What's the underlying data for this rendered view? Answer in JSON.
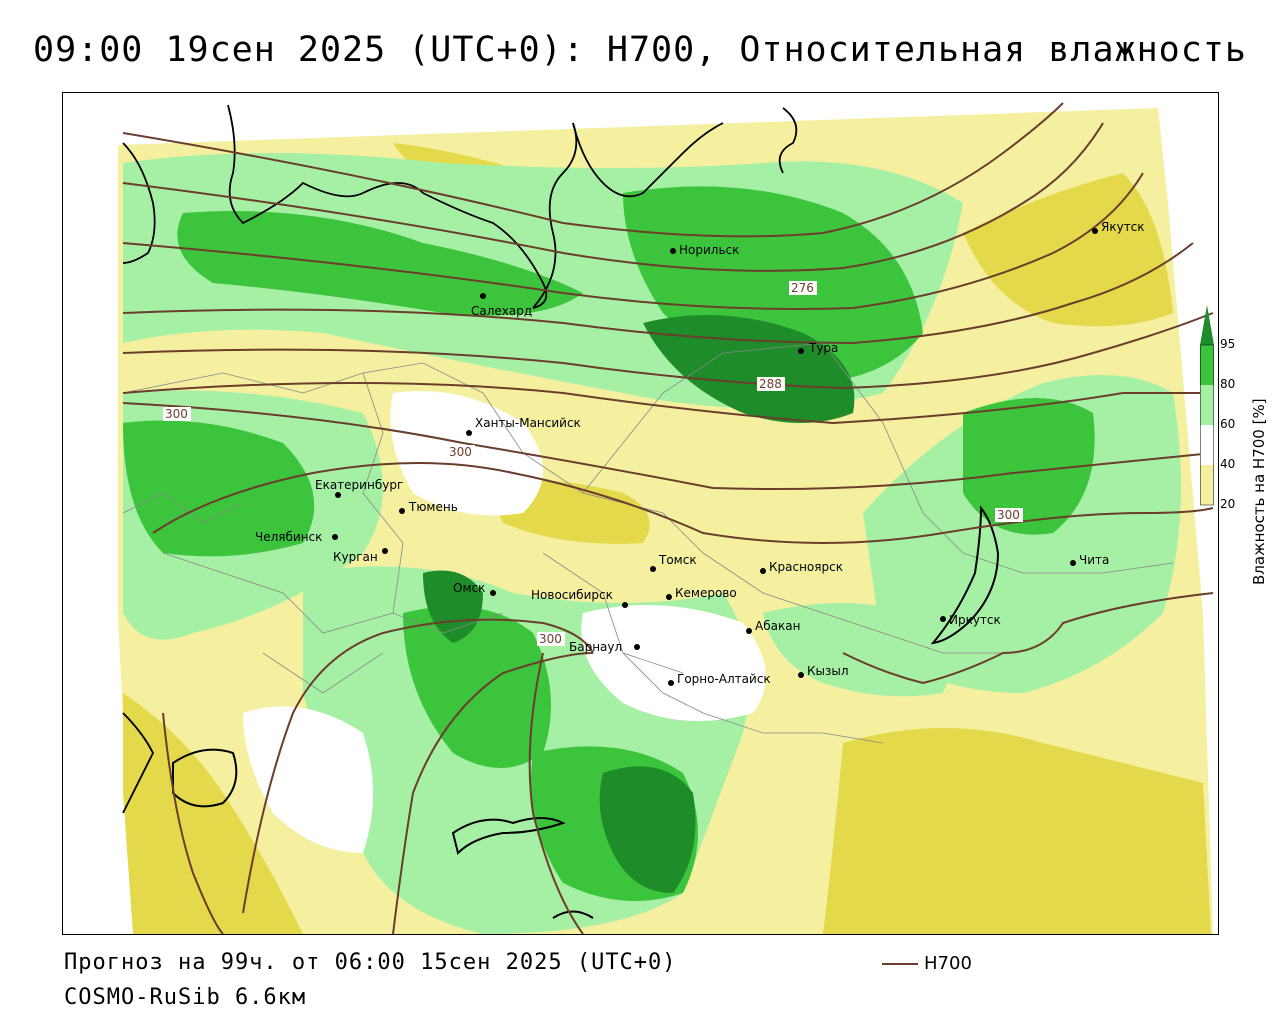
{
  "header": {
    "title": "09:00 19сен 2025 (UTC+0): H700, Относительная влажность"
  },
  "footer": {
    "forecast_text": "Прогноз на 99ч. от 06:00 15сен 2025 (UTC+0)",
    "model_text": "COSMO-RuSib 6.6км",
    "legend_label": "H700"
  },
  "colorbar": {
    "title": "Влажность на H700 [%]",
    "ticks": [
      "95",
      "80",
      "60",
      "40",
      "20"
    ],
    "colors": {
      "c95": "#1f8c2a",
      "c80": "#3cc43c",
      "c60": "#a6f0a6",
      "c40": "#ffffff",
      "c20": "#f5f0a0",
      "dry": "#e3d94a"
    }
  },
  "contour_labels": [
    "276",
    "288",
    "300",
    "300",
    "300",
    "300"
  ],
  "cities": [
    {
      "name": "Якутск"
    },
    {
      "name": "Норильск"
    },
    {
      "name": "Салехард"
    },
    {
      "name": "Тура"
    },
    {
      "name": "Ханты-Мансийск"
    },
    {
      "name": "Екатеринбург"
    },
    {
      "name": "Тюмень"
    },
    {
      "name": "Челябинск"
    },
    {
      "name": "Курган"
    },
    {
      "name": "Омск"
    },
    {
      "name": "Новосибирск"
    },
    {
      "name": "Томск"
    },
    {
      "name": "Кемерово"
    },
    {
      "name": "Красноярск"
    },
    {
      "name": "Абакан"
    },
    {
      "name": "Барнаул"
    },
    {
      "name": "Горно-Алтайск"
    },
    {
      "name": "Кызыл"
    },
    {
      "name": "Иркутск"
    },
    {
      "name": "Чита"
    }
  ]
}
